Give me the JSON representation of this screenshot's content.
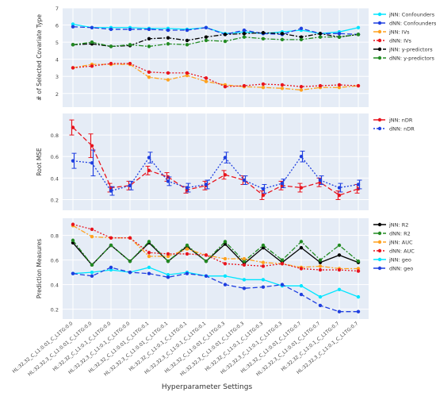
{
  "xlabel": "Hyperparameter Settings",
  "x_categories": [
    "HL:32,32_C_L1:0.01_C_L1TG:0.0",
    "HL:32,32,3_C_L1:0.01_C_L1TG:0.0",
    "HL:32,32_C_L1:0.1_C_L1TG:0.0",
    "HL:32,32,3_C_L1:0.1_C_L1TG:0.0",
    "HL:32,32_C_L1:0.01_C_L1TG:0.1",
    "HL:32,32,3_C_L1:0.01_C_L1TG:0.1",
    "HL:32,32_C_L1:0.1_C_L1TG:0.1",
    "HL:32,32,3_C_L1:0.1_C_L1TG:0.1",
    "HL:32,32_C_L1:0.01_C_L1TG:0.3",
    "HL:32,32,3_C_L1:0.01_C_L1TG:0.3",
    "HL:32,32_C_L1:0.1_C_L1TG:0.3",
    "HL:32,32,3_C_L1:0.1_C_L1TG:0.3",
    "HL:32,32_C_L1:0.01_C_L1TG:0.7",
    "HL:32,32,3_C_L1:0.01_C_L1TG:0.7",
    "HL:32,32_C_L1:0.1_C_L1TG:0.7",
    "HL:32,32,3_C_L1:0.1_C_L1TG:0.7"
  ],
  "chart_data": [
    {
      "type": "line",
      "ylabel": "# of Selected Covariate Type",
      "ylim": [
        1.2,
        7
      ],
      "yticks": [
        2,
        3,
        4,
        5,
        6,
        7
      ],
      "grid": true,
      "legend_position": "right",
      "series": [
        {
          "name": "jNN: Confounders",
          "color": "#00e5ff",
          "dash": "solid",
          "marker": "circle",
          "values": [
            6.05,
            5.85,
            5.85,
            5.85,
            5.8,
            5.8,
            5.75,
            5.85,
            5.5,
            5.6,
            5.5,
            5.6,
            5.7,
            5.5,
            5.6,
            5.85
          ]
        },
        {
          "name": "dNN: Confounders",
          "color": "#1f3fe0",
          "dash": "dash",
          "marker": "circle",
          "values": [
            5.9,
            5.85,
            5.75,
            5.75,
            5.75,
            5.7,
            5.7,
            5.85,
            5.45,
            5.7,
            5.5,
            5.45,
            5.8,
            5.5,
            5.5,
            5.45
          ]
        },
        {
          "name": "jNN: IVs",
          "color": "#ffa21f",
          "dash": "dashdot",
          "marker": "circle",
          "values": [
            3.5,
            3.7,
            3.7,
            3.7,
            2.95,
            2.8,
            3.05,
            2.7,
            2.5,
            2.4,
            2.35,
            2.3,
            2.2,
            2.35,
            2.35,
            2.45
          ]
        },
        {
          "name": "dNN: IVs",
          "color": "#e8141e",
          "dash": "dot",
          "marker": "circle",
          "values": [
            3.5,
            3.6,
            3.75,
            3.75,
            3.25,
            3.2,
            3.2,
            2.9,
            2.4,
            2.45,
            2.55,
            2.5,
            2.4,
            2.45,
            2.5,
            2.45
          ]
        },
        {
          "name": "jNN: y-predictors",
          "color": "#000000",
          "dash": "dashdot",
          "marker": "circle",
          "values": [
            4.85,
            4.9,
            4.75,
            4.8,
            5.2,
            5.25,
            5.1,
            5.3,
            5.45,
            5.5,
            5.55,
            5.5,
            5.3,
            5.5,
            5.3,
            5.45
          ]
        },
        {
          "name": "dNN: y-predictors",
          "color": "#228b22",
          "dash": "dashdot",
          "marker": "circle",
          "values": [
            4.85,
            5.0,
            4.75,
            4.85,
            4.75,
            4.9,
            4.85,
            5.1,
            5.05,
            5.3,
            5.2,
            5.15,
            5.15,
            5.3,
            5.3,
            5.45
          ]
        }
      ]
    },
    {
      "type": "line",
      "ylabel": "Root MSE",
      "ylim": [
        0.1,
        1.0
      ],
      "yticks": [
        0.2,
        0.4,
        0.6,
        0.8
      ],
      "grid": true,
      "legend_position": "right",
      "series": [
        {
          "name": "jNN: nDR",
          "color": "#e8141e",
          "dash": "dash",
          "marker": "circle",
          "values": [
            0.87,
            0.7,
            0.31,
            0.33,
            0.47,
            0.41,
            0.29,
            0.33,
            0.43,
            0.38,
            0.24,
            0.33,
            0.31,
            0.36,
            0.24,
            0.3
          ],
          "errors": [
            0.07,
            0.11,
            0.04,
            0.04,
            0.04,
            0.04,
            0.03,
            0.04,
            0.04,
            0.04,
            0.04,
            0.04,
            0.04,
            0.04,
            0.04,
            0.04
          ]
        },
        {
          "name": "dNN: nDR",
          "color": "#1f3fe0",
          "dash": "dot",
          "marker": "circle",
          "values": [
            0.56,
            0.54,
            0.28,
            0.33,
            0.59,
            0.37,
            0.31,
            0.34,
            0.59,
            0.38,
            0.3,
            0.35,
            0.6,
            0.38,
            0.31,
            0.34
          ],
          "errors": [
            0.07,
            0.12,
            0.04,
            0.04,
            0.05,
            0.04,
            0.04,
            0.04,
            0.05,
            0.04,
            0.04,
            0.04,
            0.05,
            0.04,
            0.04,
            0.04
          ]
        }
      ]
    },
    {
      "type": "line",
      "ylabel": "Prediction Measures",
      "ylim": [
        0.12,
        0.94
      ],
      "yticks": [
        0.2,
        0.4,
        0.6,
        0.8
      ],
      "grid": true,
      "legend_position": "right",
      "series": [
        {
          "name": "jNN: R2",
          "color": "#000000",
          "dash": "solid",
          "marker": "circle",
          "values": [
            0.74,
            0.56,
            0.72,
            0.59,
            0.74,
            0.59,
            0.71,
            0.59,
            0.73,
            0.57,
            0.7,
            0.58,
            0.7,
            0.58,
            0.64,
            0.58
          ]
        },
        {
          "name": "dNN: R2",
          "color": "#228b22",
          "dash": "dashdot",
          "marker": "circle",
          "values": [
            0.76,
            0.56,
            0.72,
            0.59,
            0.75,
            0.59,
            0.72,
            0.59,
            0.75,
            0.59,
            0.72,
            0.6,
            0.75,
            0.6,
            0.72,
            0.59
          ]
        },
        {
          "name": "jNN: AUC",
          "color": "#ffa21f",
          "dash": "dashdot",
          "marker": "circle",
          "values": [
            0.88,
            0.79,
            0.78,
            0.78,
            0.63,
            0.63,
            0.69,
            0.64,
            0.61,
            0.61,
            0.58,
            0.57,
            0.54,
            0.55,
            0.53,
            0.53
          ]
        },
        {
          "name": "dNN: AUC",
          "color": "#e8141e",
          "dash": "dot",
          "marker": "circle",
          "values": [
            0.89,
            0.85,
            0.78,
            0.78,
            0.66,
            0.65,
            0.65,
            0.64,
            0.57,
            0.56,
            0.55,
            0.57,
            0.53,
            0.52,
            0.52,
            0.51
          ]
        },
        {
          "name": "jNN: geo",
          "color": "#00e5ff",
          "dash": "solid",
          "marker": "circle",
          "values": [
            0.49,
            0.5,
            0.52,
            0.5,
            0.54,
            0.48,
            0.5,
            0.47,
            0.47,
            0.44,
            0.44,
            0.39,
            0.39,
            0.3,
            0.36,
            0.3
          ]
        },
        {
          "name": "dNN: geo",
          "color": "#1f3fe0",
          "dash": "dash",
          "marker": "circle",
          "values": [
            0.49,
            0.47,
            0.54,
            0.5,
            0.49,
            0.46,
            0.49,
            0.47,
            0.4,
            0.37,
            0.38,
            0.4,
            0.32,
            0.23,
            0.18,
            0.18
          ]
        }
      ]
    }
  ]
}
